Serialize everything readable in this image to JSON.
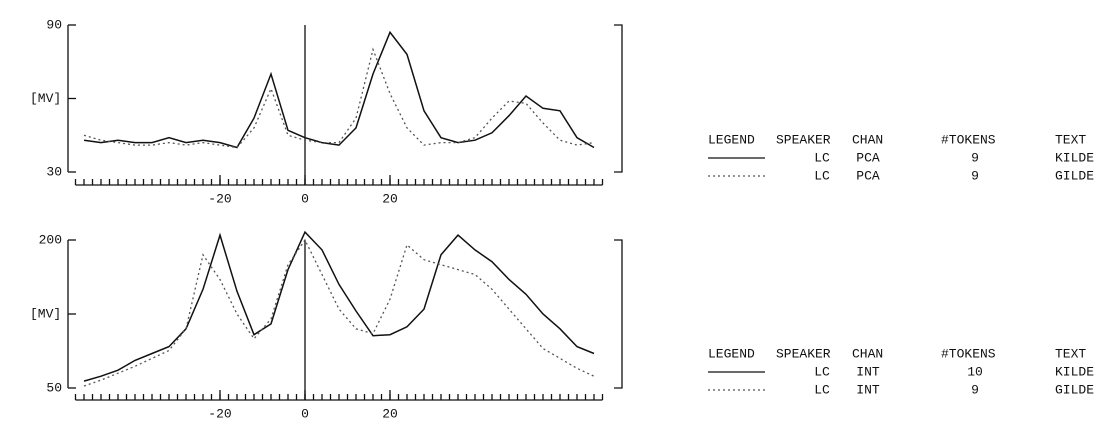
{
  "chart_data": [
    {
      "type": "line",
      "y_label": "[MV]",
      "xlim": [
        -54,
        70
      ],
      "xticks": [
        -20,
        0,
        20
      ],
      "xminor": 2,
      "ylim": [
        30,
        90
      ],
      "yticks": [
        30,
        90
      ],
      "x": [
        -52,
        -48,
        -44,
        -40,
        -36,
        -32,
        -28,
        -24,
        -20,
        -16,
        -12,
        -8,
        -4,
        0,
        4,
        8,
        12,
        16,
        20,
        24,
        28,
        32,
        36,
        40,
        44,
        48,
        52,
        56,
        60,
        64,
        68
      ],
      "legend_header": [
        "LEGEND",
        "SPEAKER",
        "CHAN",
        "#TOKENS",
        "TEXT"
      ],
      "series": [
        {
          "style": "solid",
          "color": "#111111",
          "speaker": "LC",
          "chan": "PCA",
          "tokens": 9,
          "text": "KILDE",
          "values": [
            43,
            42,
            43,
            42,
            42,
            44,
            42,
            43,
            42,
            40,
            52,
            70,
            47,
            44,
            42,
            41,
            48,
            70,
            87,
            78,
            55,
            44,
            42,
            43,
            46,
            53,
            61,
            56,
            55,
            44,
            40
          ]
        },
        {
          "style": "dotted",
          "color": "#555555",
          "speaker": "LC",
          "chan": "PCA",
          "tokens": 9,
          "text": "GILDE",
          "values": [
            45,
            43,
            42,
            41,
            41,
            42,
            41,
            42,
            41,
            40,
            48,
            64,
            45,
            43,
            42,
            42,
            52,
            80,
            62,
            48,
            41,
            42,
            42,
            44,
            52,
            59,
            58,
            50,
            43,
            41,
            42
          ]
        }
      ]
    },
    {
      "type": "line",
      "y_label": "[MV]",
      "xlim": [
        -54,
        70
      ],
      "xticks": [
        -20,
        0,
        20
      ],
      "xminor": 2,
      "ylim": [
        50,
        200
      ],
      "yticks": [
        50,
        200
      ],
      "x": [
        -52,
        -48,
        -44,
        -40,
        -36,
        -32,
        -28,
        -24,
        -20,
        -16,
        -12,
        -8,
        -4,
        0,
        4,
        8,
        12,
        16,
        20,
        24,
        28,
        32,
        36,
        40,
        44,
        48,
        52,
        56,
        60,
        64,
        68
      ],
      "legend_header": [
        "LEGEND",
        "SPEAKER",
        "CHAN",
        "#TOKENS",
        "TEXT"
      ],
      "series": [
        {
          "style": "solid",
          "color": "#111111",
          "speaker": "LC",
          "chan": "INT",
          "tokens": 10,
          "text": "KILDE",
          "values": [
            57,
            62,
            68,
            78,
            85,
            92,
            110,
            150,
            205,
            148,
            104,
            115,
            170,
            208,
            190,
            155,
            128,
            103,
            104,
            112,
            130,
            185,
            205,
            190,
            178,
            160,
            145,
            125,
            110,
            92,
            85
          ]
        },
        {
          "style": "dotted",
          "color": "#555555",
          "speaker": "LC",
          "chan": "INT",
          "tokens": 9,
          "text": "GILDE",
          "values": [
            52,
            58,
            65,
            72,
            80,
            88,
            110,
            185,
            160,
            125,
            100,
            120,
            175,
            200,
            165,
            130,
            110,
            105,
            140,
            195,
            180,
            175,
            170,
            165,
            150,
            130,
            110,
            90,
            80,
            70,
            62
          ]
        }
      ]
    }
  ]
}
